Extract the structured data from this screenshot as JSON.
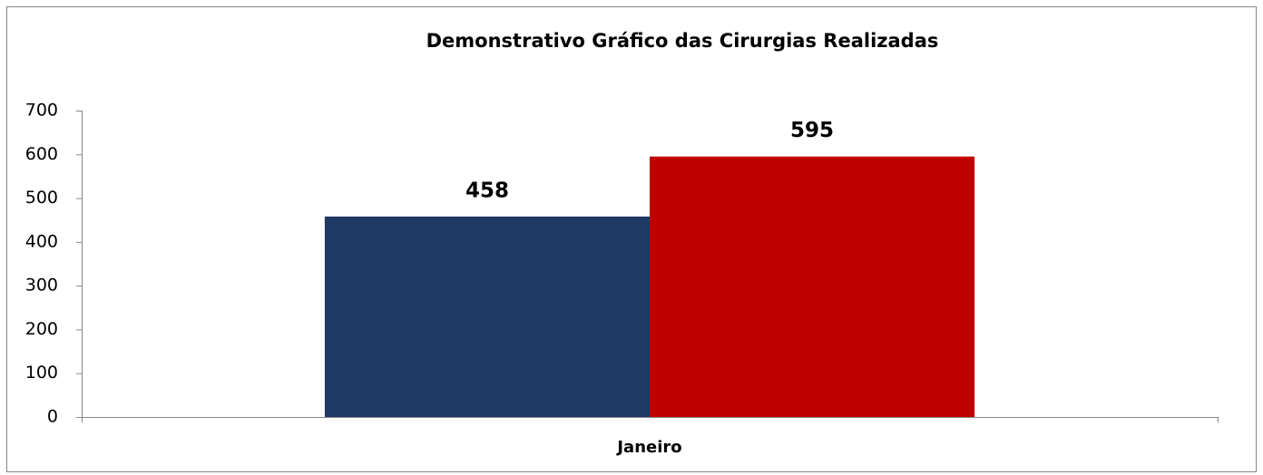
{
  "chart_data": {
    "type": "bar",
    "title": "Demonstrativo Gráfico das Cirurgias Realizadas",
    "categories": [
      "Janeiro"
    ],
    "series": [
      {
        "color": "#203864",
        "values": [
          458
        ]
      },
      {
        "color": "#c00000",
        "values": [
          595
        ]
      }
    ],
    "ylim": [
      0,
      700
    ],
    "yticks": [
      0,
      100,
      200,
      300,
      400,
      500,
      600,
      700
    ],
    "grid": false
  }
}
